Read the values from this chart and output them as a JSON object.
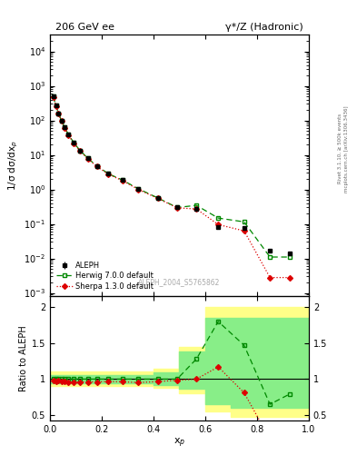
{
  "title_left": "206 GeV ee",
  "title_right": "γ*/Z (Hadronic)",
  "ylabel_main": "1/σ dσ/dx$_p$",
  "ylabel_ratio": "Ratio to ALEPH",
  "xlabel": "x$_p$",
  "watermark": "ALEPH_2004_S5765862",
  "right_label": "Rivet 3.1.10, ≥ 500k events",
  "right_label2": "mcplots.cern.ch [arXiv:1306.3436]",
  "aleph_x": [
    0.013,
    0.023,
    0.033,
    0.044,
    0.056,
    0.071,
    0.091,
    0.116,
    0.146,
    0.181,
    0.226,
    0.281,
    0.341,
    0.416,
    0.491,
    0.566,
    0.65,
    0.75,
    0.85,
    0.925
  ],
  "aleph_y": [
    490,
    265,
    160,
    100,
    63,
    40,
    23,
    13.5,
    8.0,
    4.8,
    2.85,
    1.85,
    1.05,
    0.57,
    0.3,
    0.27,
    0.082,
    0.078,
    0.017,
    0.014
  ],
  "aleph_yerr": [
    25,
    13,
    7,
    4.5,
    2.8,
    1.8,
    1.1,
    0.65,
    0.38,
    0.22,
    0.13,
    0.09,
    0.055,
    0.035,
    0.018,
    0.013,
    0.005,
    0.004,
    0.0015,
    0.0015
  ],
  "herwig_x": [
    0.013,
    0.023,
    0.033,
    0.044,
    0.056,
    0.071,
    0.091,
    0.116,
    0.146,
    0.181,
    0.226,
    0.281,
    0.341,
    0.416,
    0.491,
    0.566,
    0.65,
    0.75,
    0.85,
    0.925
  ],
  "herwig_y": [
    490,
    265,
    160,
    100,
    63,
    40,
    23,
    13.5,
    8.0,
    4.8,
    2.85,
    1.85,
    1.05,
    0.57,
    0.3,
    0.345,
    0.148,
    0.115,
    0.011,
    0.011
  ],
  "sherpa_x": [
    0.013,
    0.023,
    0.033,
    0.044,
    0.056,
    0.071,
    0.091,
    0.116,
    0.146,
    0.181,
    0.226,
    0.281,
    0.341,
    0.416,
    0.491,
    0.566,
    0.65,
    0.75,
    0.85,
    0.925
  ],
  "sherpa_y": [
    480,
    258,
    157,
    97,
    61,
    38,
    22,
    13.0,
    7.7,
    4.6,
    2.75,
    1.78,
    1.0,
    0.55,
    0.295,
    0.27,
    0.096,
    0.063,
    0.0028,
    0.0028
  ],
  "herwig_ratio": [
    1.0,
    1.0,
    1.0,
    1.0,
    1.0,
    1.0,
    1.0,
    1.0,
    1.0,
    1.0,
    1.0,
    1.0,
    1.0,
    1.0,
    1.0,
    1.28,
    1.8,
    1.47,
    0.65,
    0.79
  ],
  "sherpa_ratio": [
    0.98,
    0.97,
    0.98,
    0.97,
    0.97,
    0.95,
    0.96,
    0.96,
    0.96,
    0.96,
    0.965,
    0.962,
    0.952,
    0.965,
    0.983,
    1.0,
    1.17,
    0.81,
    0.165,
    0.2
  ],
  "band_steps_x": [
    0.0,
    0.05,
    0.1,
    0.2,
    0.3,
    0.4,
    0.5,
    0.6,
    0.7,
    0.8,
    0.9,
    1.0
  ],
  "band_yellow_lo": [
    0.9,
    0.9,
    0.9,
    0.9,
    0.9,
    0.88,
    0.8,
    0.55,
    0.48,
    0.48,
    0.48,
    0.48
  ],
  "band_yellow_hi": [
    1.1,
    1.1,
    1.1,
    1.1,
    1.1,
    1.15,
    1.45,
    2.0,
    2.0,
    2.0,
    2.0,
    2.0
  ],
  "band_green_lo": [
    0.94,
    0.94,
    0.94,
    0.94,
    0.94,
    0.92,
    0.86,
    0.65,
    0.6,
    0.6,
    0.6,
    0.6
  ],
  "band_green_hi": [
    1.06,
    1.06,
    1.06,
    1.06,
    1.06,
    1.09,
    1.38,
    1.85,
    1.85,
    1.85,
    1.85,
    1.85
  ],
  "color_aleph": "#000000",
  "color_herwig": "#008800",
  "color_sherpa": "#dd0000",
  "color_yellow": "#ffff88",
  "color_green": "#88ee88",
  "xlim": [
    0,
    1
  ],
  "ylim_main": [
    0.0008,
    30000.0
  ],
  "ylim_ratio": [
    0.42,
    2.15
  ],
  "ratio_yticks": [
    0.5,
    1.0,
    1.5,
    2.0
  ],
  "ratio_yticklabels": [
    "0.5",
    "1",
    "1.5",
    "2"
  ]
}
